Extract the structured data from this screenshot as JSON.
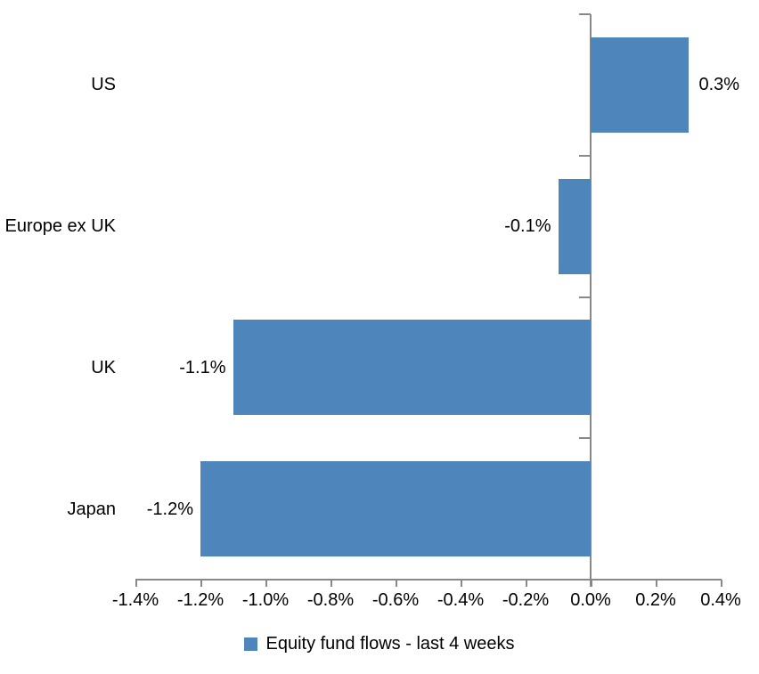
{
  "chart_data": {
    "type": "bar",
    "orientation": "horizontal",
    "title": "",
    "categories": [
      "US",
      "Europe ex UK",
      "UK",
      "Japan"
    ],
    "series": [
      {
        "name": "Equity fund flows - last 4 weeks",
        "values": [
          0.3,
          -0.1,
          -1.1,
          -1.2
        ],
        "value_labels": [
          "0.3%",
          "-0.1%",
          "-1.1%",
          "-1.2%"
        ]
      }
    ],
    "x_axis": {
      "min": -1.4,
      "max": 0.4,
      "step": 0.2,
      "tick_labels": [
        "-1.4%",
        "-1.2%",
        "-1.0%",
        "-0.8%",
        "-0.6%",
        "-0.4%",
        "-0.2%",
        "0.0%",
        "0.2%",
        "0.4%"
      ]
    },
    "legend": {
      "position": "bottom",
      "entries": [
        {
          "label": "Equity fund flows - last 4 weeks",
          "color": "#4e86bb"
        }
      ]
    },
    "grid": false,
    "bar_color": "#4e86bb",
    "axis_color": "#888888",
    "text_color": "#000000",
    "background_color": "#ffffff"
  }
}
